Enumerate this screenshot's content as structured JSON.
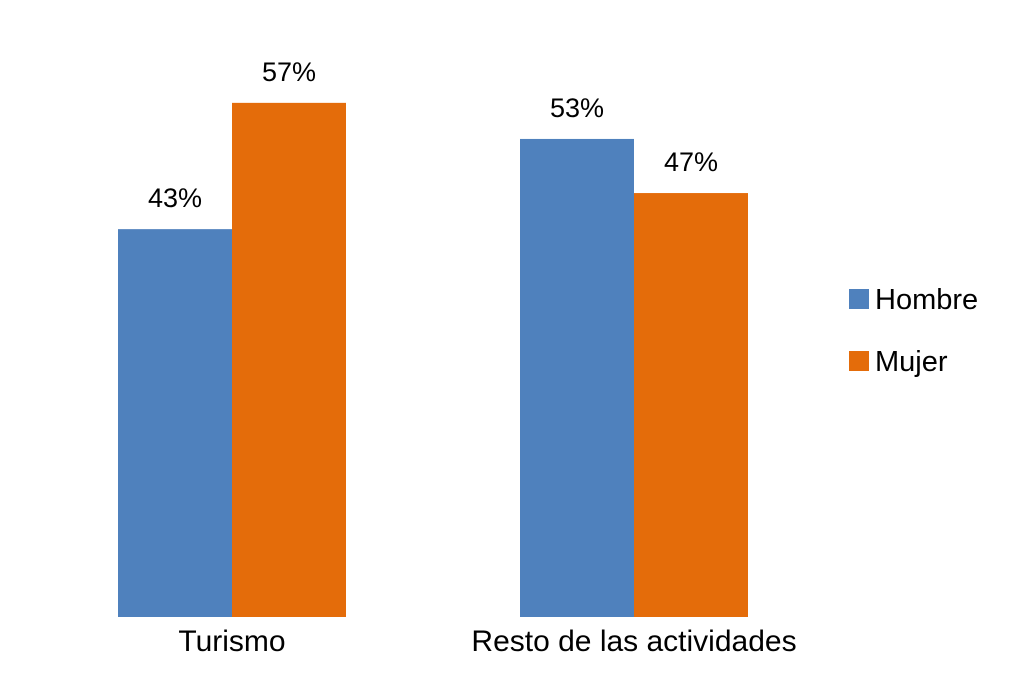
{
  "colors": {
    "Hombre": "#4F81BD",
    "Mujer": "#E46C0A",
    "background": "#FFFFFF"
  },
  "chart_data": {
    "type": "bar",
    "title": "",
    "xlabel": "",
    "ylabel": "",
    "categories": [
      "Turismo",
      "Resto de las actividades"
    ],
    "series": [
      {
        "name": "Hombre",
        "values": [
          43,
          53
        ],
        "labels": [
          "43%",
          "53%"
        ]
      },
      {
        "name": "Mujer",
        "values": [
          57,
          47
        ],
        "labels": [
          "57%",
          "47%"
        ]
      }
    ],
    "ylim": [
      0,
      60
    ],
    "unit": "%",
    "grid": false,
    "legend_position": "right"
  }
}
